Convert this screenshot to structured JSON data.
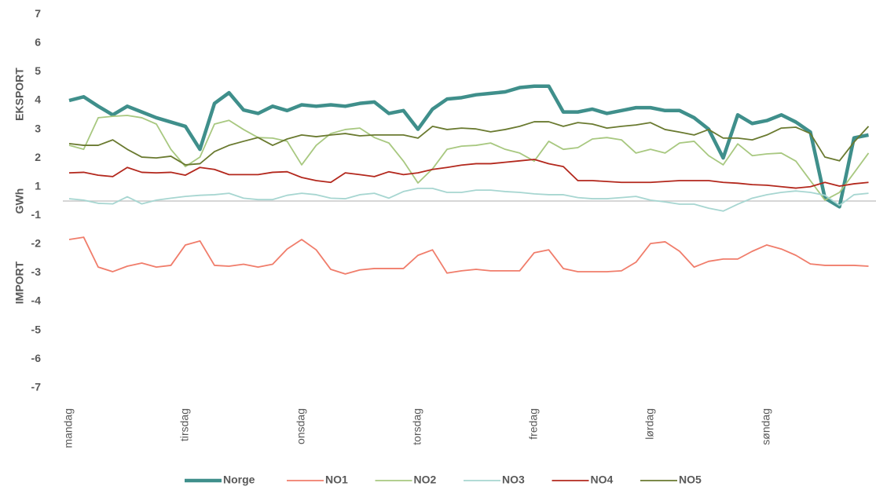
{
  "chart_data": {
    "type": "line",
    "ylabel": "GWh",
    "annotations": [
      "EKSPORT",
      "IMPORT"
    ],
    "categories": [
      "mandag",
      null,
      null,
      null,
      null,
      null,
      null,
      null,
      "tirsdag",
      null,
      null,
      null,
      null,
      null,
      null,
      null,
      "onsdag",
      null,
      null,
      null,
      null,
      null,
      null,
      null,
      "torsdag",
      null,
      null,
      null,
      null,
      null,
      null,
      null,
      "fredag",
      null,
      null,
      null,
      null,
      null,
      null,
      null,
      "lørdag",
      null,
      null,
      null,
      null,
      null,
      null,
      null,
      "søndag",
      null,
      null,
      null,
      null,
      null,
      null,
      null
    ],
    "ylim": [
      -7,
      7
    ],
    "yticks": [
      {
        "value": 6.5,
        "label": "7"
      },
      {
        "value": 5.5,
        "label": "6"
      },
      {
        "value": 4.5,
        "label": "5"
      },
      {
        "value": 3.5,
        "label": "4"
      },
      {
        "value": 2.5,
        "label": "3"
      },
      {
        "value": 1.5,
        "label": "2"
      },
      {
        "value": 0.5,
        "label": "1"
      },
      {
        "value": -0.5,
        "label": "-1"
      },
      {
        "value": -1.5,
        "label": "-2"
      },
      {
        "value": -2.5,
        "label": "-3"
      },
      {
        "value": -3.5,
        "label": "-4"
      },
      {
        "value": -4.5,
        "label": "-5"
      },
      {
        "value": -5.5,
        "label": "-6"
      },
      {
        "value": -6.5,
        "label": "-7"
      }
    ],
    "series": [
      {
        "name": "Norge",
        "color": "#3f8f8b",
        "line_width": 4.5,
        "values": [
          3.5,
          3.63,
          3.3,
          3.0,
          3.3,
          3.1,
          2.9,
          2.75,
          2.6,
          1.8,
          3.4,
          3.77,
          3.17,
          3.05,
          3.3,
          3.15,
          3.35,
          3.3,
          3.35,
          3.3,
          3.4,
          3.45,
          3.05,
          3.15,
          2.5,
          3.2,
          3.55,
          3.6,
          3.7,
          3.75,
          3.8,
          3.95,
          4.0,
          4.0,
          3.1,
          3.1,
          3.2,
          3.05,
          3.15,
          3.25,
          3.25,
          3.15,
          3.15,
          2.9,
          2.5,
          1.5,
          3.0,
          2.7,
          2.8,
          3.0,
          2.75,
          2.4,
          0.1,
          -0.2,
          2.2,
          2.3
        ]
      },
      {
        "name": "NO1",
        "color": "#f07d6b",
        "line_width": 1.8,
        "values": [
          -1.34,
          -1.26,
          -2.3,
          -2.46,
          -2.27,
          -2.16,
          -2.3,
          -2.24,
          -1.53,
          -1.39,
          -2.24,
          -2.27,
          -2.2,
          -2.3,
          -2.2,
          -1.67,
          -1.34,
          -1.7,
          -2.38,
          -2.54,
          -2.4,
          -2.35,
          -2.35,
          -2.35,
          -1.89,
          -1.7,
          -2.51,
          -2.43,
          -2.38,
          -2.43,
          -2.43,
          -2.43,
          -1.8,
          -1.7,
          -2.35,
          -2.46,
          -2.46,
          -2.46,
          -2.43,
          -2.13,
          -1.48,
          -1.42,
          -1.75,
          -2.3,
          -2.1,
          -2.02,
          -2.02,
          -1.75,
          -1.53,
          -1.67,
          -1.89,
          -2.19,
          -2.24,
          -2.24,
          -2.24,
          -2.27
        ]
      },
      {
        "name": "NO2",
        "color": "#a8c880",
        "line_width": 1.8,
        "values": [
          1.94,
          1.8,
          2.9,
          2.95,
          2.98,
          2.9,
          2.68,
          1.8,
          1.2,
          1.53,
          2.68,
          2.81,
          2.49,
          2.21,
          2.19,
          2.08,
          1.26,
          1.94,
          2.35,
          2.49,
          2.54,
          2.21,
          2.02,
          1.39,
          0.63,
          1.12,
          1.8,
          1.91,
          1.94,
          2.02,
          1.8,
          1.67,
          1.39,
          2.08,
          1.8,
          1.86,
          2.16,
          2.21,
          2.13,
          1.67,
          1.8,
          1.67,
          2.02,
          2.08,
          1.58,
          1.26,
          1.99,
          1.58,
          1.64,
          1.67,
          1.39,
          0.71,
          0.03,
          0.3,
          0.98,
          1.67
        ]
      },
      {
        "name": "NO3",
        "color": "#a7d6d1",
        "line_width": 1.8,
        "values": [
          0.08,
          0.03,
          -0.08,
          -0.1,
          0.15,
          -0.1,
          0.03,
          0.1,
          0.16,
          0.2,
          0.22,
          0.27,
          0.1,
          0.05,
          0.05,
          0.2,
          0.27,
          0.22,
          0.1,
          0.08,
          0.22,
          0.27,
          0.1,
          0.33,
          0.44,
          0.44,
          0.3,
          0.3,
          0.38,
          0.38,
          0.33,
          0.3,
          0.25,
          0.22,
          0.22,
          0.12,
          0.08,
          0.08,
          0.12,
          0.16,
          0.03,
          -0.03,
          -0.11,
          -0.11,
          -0.25,
          -0.35,
          -0.11,
          0.1,
          0.22,
          0.3,
          0.35,
          0.3,
          0.2,
          -0.15,
          0.22,
          0.27
        ]
      },
      {
        "name": "NO4",
        "color": "#b3281d",
        "line_width": 1.8,
        "values": [
          0.98,
          1.0,
          0.9,
          0.85,
          1.17,
          1.0,
          0.98,
          1.0,
          0.9,
          1.17,
          1.1,
          0.92,
          0.92,
          0.92,
          1.0,
          1.02,
          0.82,
          0.71,
          0.65,
          0.98,
          0.92,
          0.85,
          1.02,
          0.92,
          0.98,
          1.1,
          1.17,
          1.25,
          1.3,
          1.3,
          1.35,
          1.4,
          1.45,
          1.3,
          1.2,
          0.71,
          0.71,
          0.68,
          0.65,
          0.65,
          0.65,
          0.68,
          0.71,
          0.71,
          0.71,
          0.65,
          0.62,
          0.57,
          0.55,
          0.5,
          0.45,
          0.5,
          0.65,
          0.52,
          0.6,
          0.65
        ]
      },
      {
        "name": "NO5",
        "color": "#6a7a30",
        "line_width": 1.8,
        "values": [
          2.0,
          1.94,
          1.94,
          2.13,
          1.8,
          1.53,
          1.5,
          1.56,
          1.26,
          1.3,
          1.72,
          1.94,
          2.08,
          2.21,
          1.94,
          2.16,
          2.3,
          2.24,
          2.3,
          2.35,
          2.27,
          2.3,
          2.3,
          2.3,
          2.19,
          2.6,
          2.49,
          2.54,
          2.51,
          2.41,
          2.49,
          2.6,
          2.76,
          2.76,
          2.6,
          2.73,
          2.68,
          2.54,
          2.6,
          2.65,
          2.73,
          2.49,
          2.4,
          2.3,
          2.49,
          2.19,
          2.19,
          2.13,
          2.3,
          2.54,
          2.57,
          2.35,
          1.53,
          1.4,
          2.05,
          2.6
        ]
      }
    ]
  }
}
